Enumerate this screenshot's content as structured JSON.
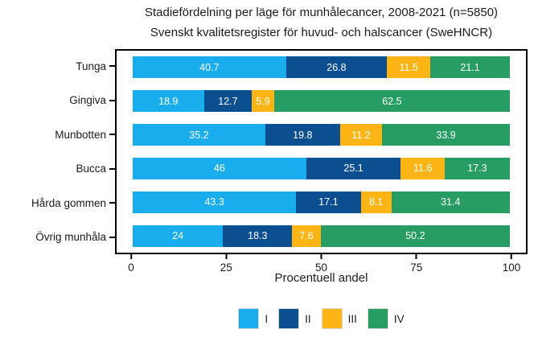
{
  "title": "Stadiefördelning per läge för munhålecancer, 2008-2021 (n=5850)",
  "subtitle": "Svenskt kvalitetsregister för huvud- och halscancer (SweHNCR)",
  "chart_data": {
    "type": "bar",
    "orientation": "horizontal",
    "stacked": true,
    "title": "Stadiefördelning per läge för munhålecancer, 2008-2021 (n=5850)",
    "subtitle": "Svenskt kvalitetsregister för huvud- och halscancer (SweHNCR)",
    "categories": [
      "Tunga",
      "Gingiva",
      "Munbotten",
      "Bucca",
      "Hårda gommen",
      "Övrig munhåla"
    ],
    "series": [
      {
        "name": "I",
        "color": "#19ADEE",
        "values": [
          40.7,
          18.9,
          35.2,
          46,
          43.3,
          24
        ]
      },
      {
        "name": "II",
        "color": "#0B4F90",
        "values": [
          26.8,
          12.7,
          19.8,
          25.1,
          17.1,
          18.3
        ]
      },
      {
        "name": "III",
        "color": "#FCB514",
        "values": [
          11.5,
          5.9,
          11.2,
          11.6,
          8.1,
          7.6
        ]
      },
      {
        "name": "IV",
        "color": "#279C63",
        "values": [
          21.1,
          62.5,
          33.9,
          17.3,
          31.4,
          50.2
        ]
      }
    ],
    "xlabel": "Procentuell andel",
    "ylabel": "",
    "x_ticks": [
      "0",
      "25",
      "50",
      "75",
      "100"
    ],
    "xlim": [
      0,
      100
    ],
    "grid": "off",
    "value_labels_color": "#ffffff",
    "legend_position": "bottom"
  },
  "colors": {
    "frame": "#000000",
    "text": "#1a1a1a",
    "background": "#ffffff",
    "value_label": "#ffffff"
  }
}
